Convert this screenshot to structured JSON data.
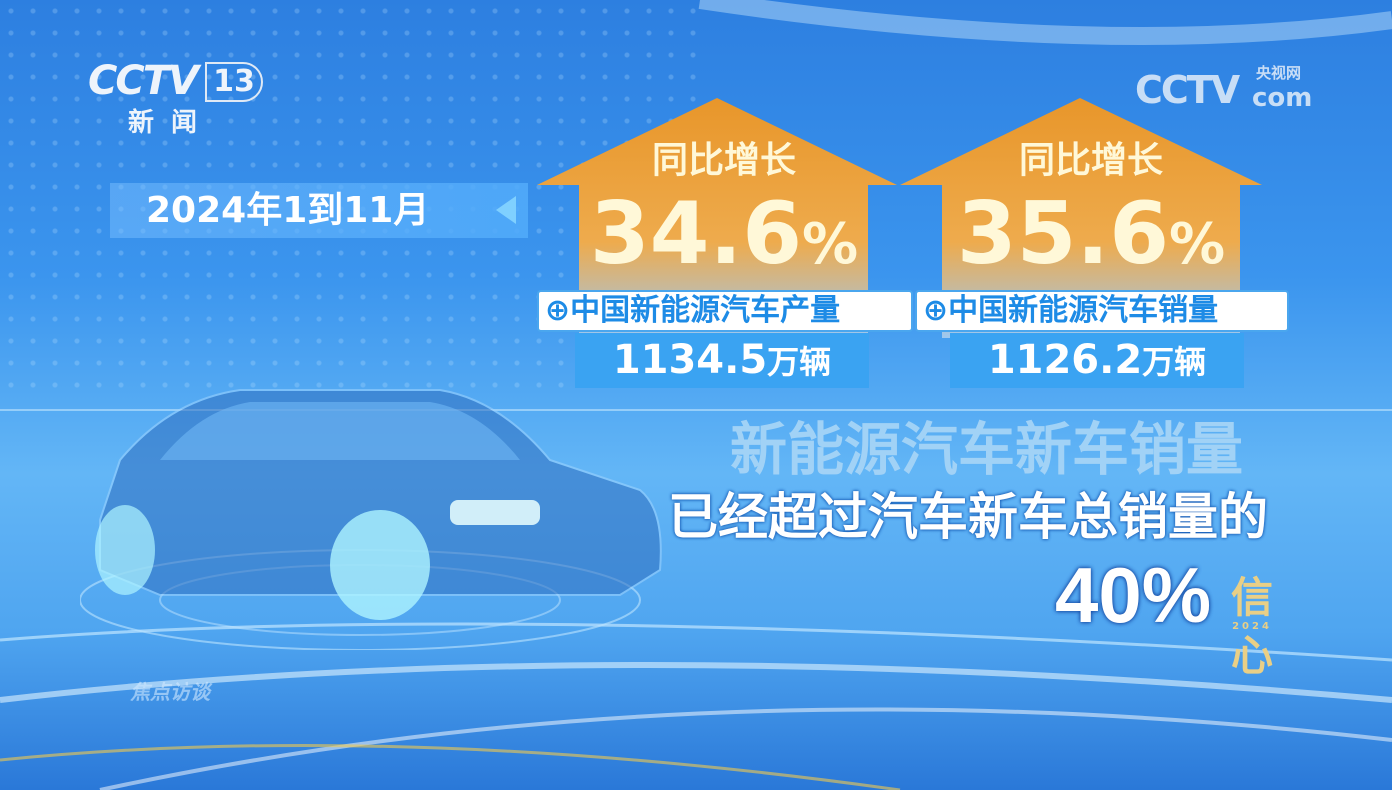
{
  "channel_logo": {
    "brand": "CCTV",
    "channel": "13",
    "name": "新 闻"
  },
  "site_logo": {
    "brand": "CCTV",
    "suffix": "com",
    "name": "央视网"
  },
  "date_banner": "2024年1到11月",
  "cards": [
    {
      "heading": "同比增长",
      "growth": "34.6",
      "unit": "%",
      "label": "中国新能源汽车产量",
      "value": "1134.5",
      "value_unit": "万辆"
    },
    {
      "heading": "同比增长",
      "growth": "35.6",
      "unit": "%",
      "label": "中国新能源汽车销量",
      "value": "1126.2",
      "value_unit": "万辆"
    }
  ],
  "statement": {
    "line1": "新能源汽车新车销量",
    "line2": "已经超过汽车新车总销量的",
    "figure": "40%"
  },
  "program_logo": "焦点访谈",
  "badge": {
    "top": "信",
    "middle": "2024",
    "bottom": "心"
  },
  "colors": {
    "arrow": "#e89a2a",
    "label_text": "#1d8be6",
    "number_box": "#3aa3f2"
  }
}
